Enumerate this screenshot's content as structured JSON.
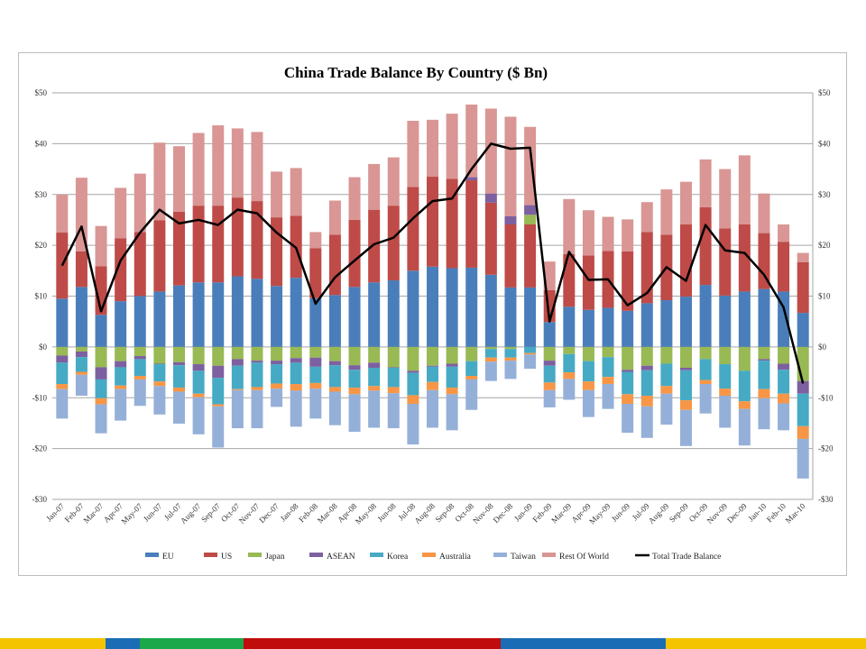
{
  "chart_data": {
    "type": "bar",
    "subtype": "stacked-bar-with-line",
    "title": "China Trade Balance By Country ($ Bn)",
    "xlabel": "",
    "ylabel": "",
    "ylim": [
      -30,
      50
    ],
    "yticks": [
      50,
      40,
      30,
      20,
      10,
      0,
      -10,
      -20,
      -30
    ],
    "ytick_labels": [
      "$50",
      "$40",
      "$30",
      "$20",
      "$10",
      "$0",
      "-$10",
      "-$20",
      "-$30"
    ],
    "grid": true,
    "legend_position": "bottom",
    "categories": [
      "Jan-07",
      "Feb-07",
      "Mar-07",
      "Apr-07",
      "May-07",
      "Jun-07",
      "Jul-07",
      "Aug-07",
      "Sep-07",
      "Oct-07",
      "Nov-07",
      "Dec-07",
      "Jan-08",
      "Feb-08",
      "Mar-08",
      "Apr-08",
      "May-08",
      "Jun-08",
      "Jul-08",
      "Aug-08",
      "Sep-08",
      "Oct-08",
      "Nov-08",
      "Dec-08",
      "Jan-09",
      "Feb-09",
      "Mar-09",
      "Apr-09",
      "May-09",
      "Jun-09",
      "Jul-09",
      "Aug-09",
      "Sep-09",
      "Oct-09",
      "Nov-09",
      "Dec-09",
      "Jan-10",
      "Feb-10",
      "Mar-10"
    ],
    "series": [
      {
        "name": "EU",
        "color": "#4a7ebb",
        "values": [
          9.5,
          11.8,
          6.3,
          9,
          10,
          10.9,
          12.1,
          12.7,
          12.7,
          13.9,
          13.4,
          12,
          13.6,
          9.6,
          10.2,
          11.8,
          12.7,
          13.1,
          15,
          15.8,
          15.5,
          15.6,
          14.2,
          11.7,
          11.7,
          4.9,
          7.9,
          7.3,
          7.7,
          7.1,
          8.6,
          9.2,
          9.9,
          12.2,
          10.1,
          10.9,
          11.4,
          10.9,
          6.7
        ]
      },
      {
        "name": "US",
        "color": "#be4b48",
        "values": [
          13,
          7,
          9.6,
          12.4,
          12.6,
          14,
          14.5,
          15.1,
          15.1,
          15.5,
          15.3,
          13.5,
          12.2,
          9.8,
          11.9,
          13.2,
          14.3,
          14.7,
          16.5,
          17.7,
          17.6,
          17.2,
          14.2,
          12.4,
          12.4,
          6.3,
          10.4,
          10.7,
          11.2,
          11.7,
          14,
          12.9,
          14.2,
          15.3,
          13.2,
          13.2,
          11,
          9.8,
          10
        ]
      },
      {
        "name": "Japan",
        "color": "#98b954",
        "values": [
          -1.7,
          -0.9,
          -4,
          -2.8,
          -1.8,
          -3.3,
          -3,
          -3.4,
          -3.7,
          -2.4,
          -2.7,
          -2.7,
          -2.2,
          -2.1,
          -2.8,
          -3.6,
          -3.1,
          -4,
          -4.7,
          -3.7,
          -3.3,
          -2.8,
          -0.4,
          -0.4,
          1.9,
          -2.7,
          -1.4,
          -2.8,
          -2,
          -4.5,
          -3.7,
          -3.3,
          -4.1,
          -2.4,
          -3.4,
          -4.7,
          -2.4,
          -3.3,
          -6.7
        ]
      },
      {
        "name": "ASEAN",
        "color": "#7d60a0",
        "values": [
          -1.4,
          -1.1,
          -2.4,
          -1.2,
          -0.6,
          -0.1,
          -0.6,
          -1.3,
          -2.4,
          -1.3,
          -0.4,
          -0.7,
          -0.9,
          -1.8,
          -0.8,
          -0.9,
          -1,
          -0.1,
          -0.4,
          -0.2,
          -0.6,
          0.6,
          1.8,
          1.6,
          1.9,
          -1,
          0,
          0,
          0,
          -0.4,
          -0.9,
          0,
          -0.5,
          0,
          0,
          0,
          -0.3,
          -1.2,
          -2.5
        ]
      },
      {
        "name": "Korea",
        "color": "#46aac5",
        "values": [
          -4.2,
          -2.9,
          -3.7,
          -3.6,
          -3.3,
          -3.4,
          -4.4,
          -4.5,
          -5.2,
          -4.6,
          -4.8,
          -3.8,
          -4.2,
          -3.2,
          -4.3,
          -3.5,
          -3.6,
          -3.8,
          -4.4,
          -3,
          -4.1,
          -2.9,
          -1.7,
          -1.7,
          -1.2,
          -3.3,
          -3.6,
          -4,
          -3.9,
          -4.4,
          -5,
          -4.4,
          -5.9,
          -4.1,
          -4.8,
          -6,
          -5.6,
          -4.7,
          -6.4
        ]
      },
      {
        "name": "Australia",
        "color": "#f79646",
        "values": [
          -1,
          -0.6,
          -1.2,
          -0.7,
          -0.7,
          -0.9,
          -0.8,
          -0.7,
          -0.4,
          -0.2,
          -0.6,
          -1,
          -1.3,
          -1.1,
          -0.9,
          -1.3,
          -0.9,
          -1.2,
          -1.7,
          -1.6,
          -1.3,
          -0.7,
          -0.8,
          -0.6,
          -0.3,
          -1.5,
          -1.3,
          -1.7,
          -1.4,
          -1.9,
          -2.1,
          -1.5,
          -1.9,
          -0.8,
          -1.4,
          -1.5,
          -1.8,
          -1.9,
          -2.5
        ]
      },
      {
        "name": "Taiwan",
        "color": "#95b0d8",
        "values": [
          -5.8,
          -4.1,
          -5.7,
          -6.2,
          -5.2,
          -5.6,
          -6.3,
          -7.3,
          -8.1,
          -7.5,
          -7.5,
          -3.6,
          -7.1,
          -5.9,
          -6.6,
          -7.4,
          -7.3,
          -6.9,
          -8,
          -7.4,
          -7.1,
          -6,
          -3.8,
          -3.6,
          -2.8,
          -3.4,
          -4.1,
          -5.3,
          -4.9,
          -5.7,
          -6.2,
          -6.1,
          -7.1,
          -5.8,
          -6.3,
          -7.2,
          -6.1,
          -5.3,
          -7.8
        ]
      },
      {
        "name": "Rest Of World",
        "color": "#d99694",
        "values": [
          7.5,
          14.5,
          7.9,
          9.9,
          11.5,
          15.3,
          12.9,
          14.3,
          15.8,
          13.6,
          13.6,
          9,
          9.4,
          3.2,
          6.7,
          8.4,
          9,
          9.5,
          13,
          11.2,
          12.8,
          14.3,
          16.7,
          19.6,
          15.4,
          5.6,
          10.8,
          8.9,
          6.7,
          6.3,
          5.9,
          8.9,
          8.4,
          9.4,
          11.7,
          13.6,
          7.8,
          3.4,
          1.8
        ]
      }
    ],
    "line": {
      "name": "Total Trade Balance",
      "color": "#000000",
      "values": [
        16,
        23.7,
        7,
        17,
        22.5,
        27,
        24.3,
        25,
        24,
        27,
        26.3,
        22.5,
        19.5,
        8.5,
        13.7,
        17,
        20.2,
        21.5,
        25.3,
        28.7,
        29.2,
        35,
        40,
        39,
        39.2,
        5,
        18.7,
        13.2,
        13.3,
        8.2,
        10.6,
        15.7,
        13,
        24,
        19,
        18.5,
        14.2,
        7.8,
        -7.2
      ]
    }
  },
  "footer_stripe_colors": [
    "#f4c400",
    "#1a6db5",
    "#1aa84a",
    "#c00c0c",
    "#1a6db5",
    "#f4c400"
  ]
}
